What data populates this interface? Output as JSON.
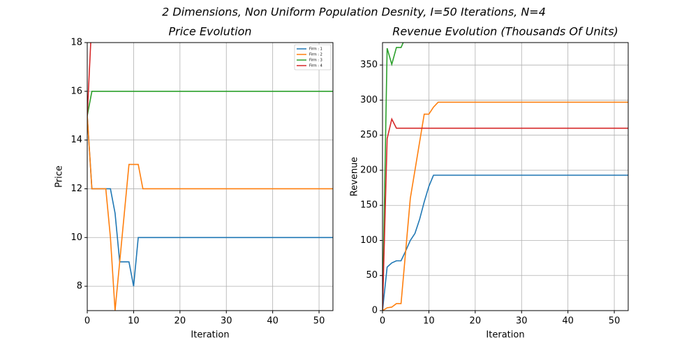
{
  "title": "2 Dimensions, Non Uniform Population Desnity, I=50 Iterations, N=4",
  "chart_data": [
    {
      "type": "line",
      "title": "Price Evolution",
      "xlabel": "Iteration",
      "ylabel": "Price",
      "x": [
        0,
        1,
        2,
        3,
        4,
        5,
        6,
        7,
        8,
        9,
        10,
        11,
        12,
        53
      ],
      "xlim": [
        0,
        53
      ],
      "xticks": [
        0,
        10,
        20,
        30,
        40,
        50
      ],
      "ylim": [
        7,
        18
      ],
      "yticks": [
        8,
        10,
        12,
        14,
        16,
        18
      ],
      "grid": true,
      "legend": "upper right",
      "series": [
        {
          "name": "Firm : 1",
          "color": "#1f77b4",
          "values": [
            15,
            12,
            12,
            12,
            12,
            12,
            11,
            9,
            9,
            9,
            8,
            10,
            10,
            10
          ]
        },
        {
          "name": "Firm : 2",
          "color": "#ff7f0e",
          "values": [
            15,
            12,
            12,
            12,
            12,
            10,
            7,
            9,
            11,
            13,
            13,
            13,
            12,
            12
          ]
        },
        {
          "name": "Firm : 3",
          "color": "#2ca02c",
          "values": [
            15,
            16,
            16,
            16,
            16,
            16,
            16,
            16,
            16,
            16,
            16,
            16,
            16,
            16
          ]
        },
        {
          "name": "Firm : 4",
          "color": "#d62728",
          "values": [
            15,
            19,
            19,
            19,
            19,
            19,
            19,
            19,
            19,
            19,
            19,
            19,
            19,
            19
          ]
        }
      ]
    },
    {
      "type": "line",
      "title": "Revenue Evolution (Thousands Of Units)",
      "xlabel": "Iteration",
      "ylabel": "Revenue",
      "x": [
        0,
        1,
        2,
        3,
        4,
        5,
        6,
        7,
        8,
        9,
        10,
        11,
        12,
        53
      ],
      "xlim": [
        0,
        53
      ],
      "xticks": [
        0,
        10,
        20,
        30,
        40,
        50
      ],
      "ylim": [
        0,
        382
      ],
      "yticks": [
        0,
        50,
        100,
        150,
        200,
        250,
        300,
        350
      ],
      "grid": true,
      "series": [
        {
          "name": "Firm : 1",
          "color": "#1f77b4",
          "values": [
            0,
            62,
            68,
            71,
            71,
            85,
            100,
            110,
            130,
            155,
            177,
            193,
            193,
            193
          ]
        },
        {
          "name": "Firm : 2",
          "color": "#ff7f0e",
          "values": [
            0,
            4,
            5,
            10,
            10,
            85,
            160,
            200,
            240,
            280,
            280,
            290,
            297,
            297
          ]
        },
        {
          "name": "Firm : 3",
          "color": "#2ca02c",
          "values": [
            0,
            374,
            351,
            375,
            375,
            390,
            390,
            390,
            390,
            390,
            390,
            390,
            390,
            390
          ]
        },
        {
          "name": "Firm : 4",
          "color": "#d62728",
          "values": [
            0,
            245,
            273,
            260,
            260,
            260,
            260,
            260,
            260,
            260,
            260,
            260,
            260,
            260
          ]
        }
      ]
    }
  ]
}
